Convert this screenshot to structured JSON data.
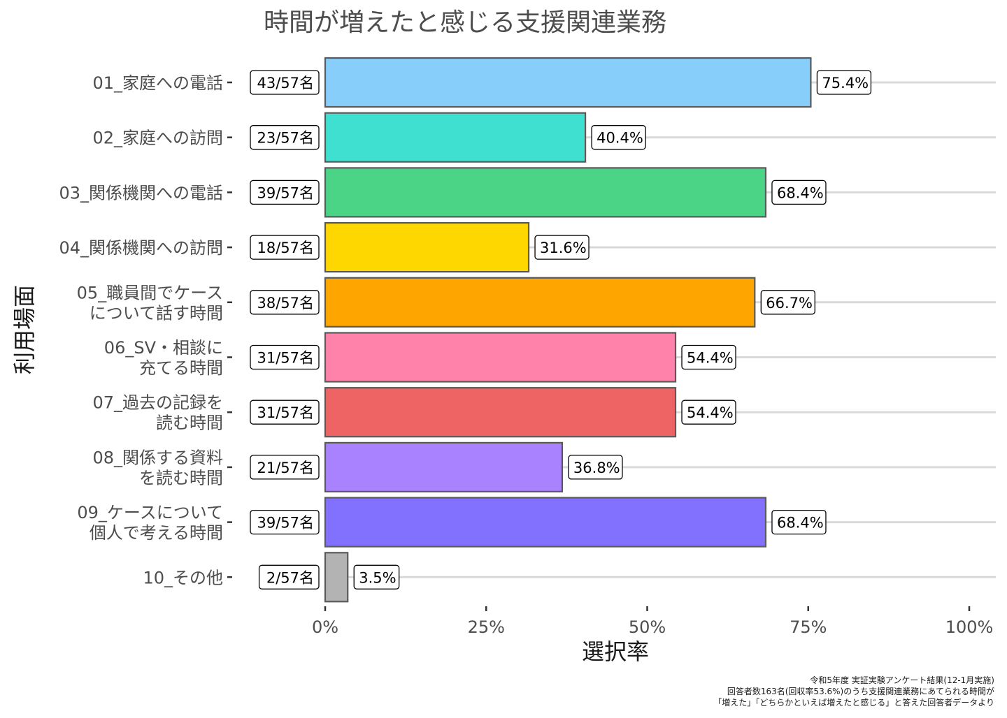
{
  "chart_data": {
    "type": "bar",
    "orientation": "horizontal",
    "title": "時間が増えたと感じる支援関連業務",
    "xlabel": "選択率",
    "ylabel": "利用場面",
    "xlim": [
      0,
      100
    ],
    "xticks": [
      "0%",
      "25%",
      "50%",
      "75%",
      "100%"
    ],
    "categories": [
      [
        "01_家庭への電話"
      ],
      [
        "02_家庭への訪問"
      ],
      [
        "03_関係機関への電話"
      ],
      [
        "04_関係機関への訪問"
      ],
      [
        "05_職員間でケース",
        "について話す時間"
      ],
      [
        "06_SV・相談に",
        "充てる時間"
      ],
      [
        "07_過去の記録を",
        "読む時間"
      ],
      [
        "08_関係する資料",
        "を読む時間"
      ],
      [
        "09_ケースについて",
        "個人で考える時間"
      ],
      [
        "10_その他"
      ]
    ],
    "values": [
      75.4,
      40.4,
      68.4,
      31.6,
      66.7,
      54.4,
      54.4,
      36.8,
      68.4,
      3.5
    ],
    "value_labels": [
      "75.4%",
      "40.4%",
      "68.4%",
      "31.6%",
      "66.7%",
      "54.4%",
      "54.4%",
      "36.8%",
      "68.4%",
      "3.5%"
    ],
    "count_labels": [
      "43/57名",
      "23/57名",
      "39/57名",
      "18/57名",
      "38/57名",
      "31/57名",
      "31/57名",
      "21/57名",
      "39/57名",
      "2/57名"
    ],
    "colors": [
      "#87cefa",
      "#40e0d0",
      "#4cd486",
      "#ffd700",
      "#ffa500",
      "#ff82aa",
      "#ee6464",
      "#a983ff",
      "#8270ff",
      "#b3b3b3"
    ],
    "caption": [
      "令和5年度 実証実験アンケート結果(12-1月実施)",
      "回答者数163名(回収率53.6%)のうち支援関連業務にあてられる時間が",
      "「増えた」「どちらかといえば増えたと感じる」と答えた回答者データより"
    ]
  }
}
